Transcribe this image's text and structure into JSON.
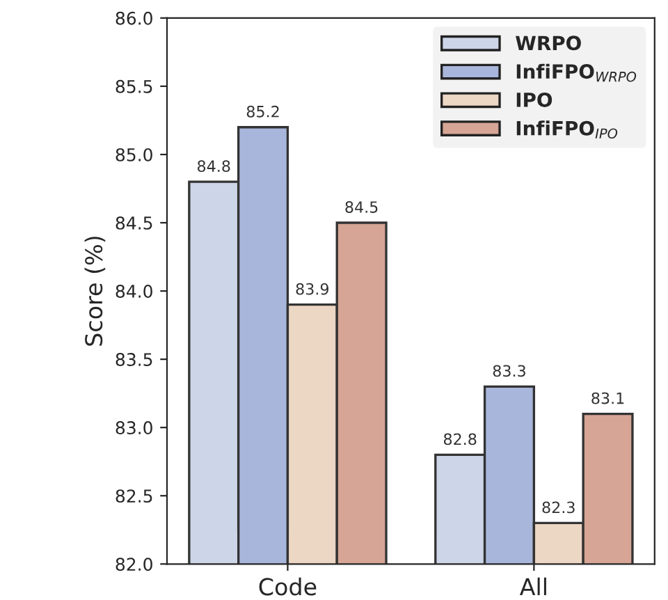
{
  "chart_data": {
    "type": "bar",
    "ylabel": "Score (%)",
    "categories": [
      "Code",
      "All"
    ],
    "series": [
      {
        "name": "WRPO",
        "color": "#cdd5e8",
        "values": [
          84.8,
          82.8
        ]
      },
      {
        "name": "InfiFPO$_{WRPO}$",
        "color": "#a9b6db",
        "values": [
          85.2,
          83.3
        ]
      },
      {
        "name": "IPO",
        "color": "#ecd6c4",
        "values": [
          83.9,
          82.3
        ]
      },
      {
        "name": "InfiFPO$_{IPO}$",
        "color": "#d6a595",
        "values": [
          84.5,
          83.1
        ]
      }
    ],
    "ylim": [
      82.0,
      86.0
    ],
    "yticks": [
      {
        "value": 82.0,
        "label": "82.0"
      },
      {
        "value": 82.5,
        "label": "82.5"
      },
      {
        "value": 83.0,
        "label": "83.0"
      },
      {
        "value": 83.5,
        "label": "83.5"
      },
      {
        "value": 84.0,
        "label": "84.0"
      },
      {
        "value": 84.5,
        "label": "84.5"
      },
      {
        "value": 85.0,
        "label": "85.0"
      },
      {
        "value": 85.5,
        "label": "85.5"
      },
      {
        "value": 86.0,
        "label": "86.0"
      }
    ],
    "data_labels": true,
    "legend": "top right",
    "grid": false
  }
}
